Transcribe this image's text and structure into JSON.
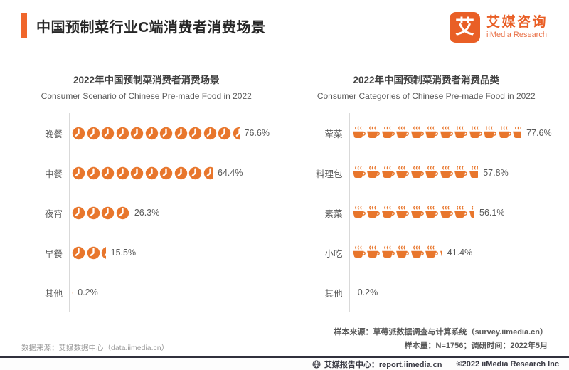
{
  "header": {
    "title": "中国预制菜行业C端消费者消费场景"
  },
  "logo": {
    "glyph": "艾",
    "name_cn": "艾媒咨询",
    "name_en": "iiMedia Research"
  },
  "colors": {
    "accent": "#F0662B",
    "icon_orange": "#E8762C",
    "logo_orange": "#E95F26"
  },
  "chart_data": [
    {
      "type": "bar",
      "variant": "pictogram",
      "icon": "clock",
      "title": "2022年中国预制菜消费者消费场景",
      "subtitle": "Consumer Scenario of Chinese Pre-made Food in 2022",
      "categories": [
        "晚餐",
        "中餐",
        "夜宵",
        "早餐",
        "其他"
      ],
      "values": [
        76.6,
        64.4,
        26.3,
        15.5,
        0.2
      ],
      "labels": [
        "76.6%",
        "64.4%",
        "26.3%",
        "15.5%",
        "0.2%"
      ],
      "icons_per_100pct": 15,
      "xlim": [
        0,
        100
      ],
      "ylabel": "",
      "xlabel": ""
    },
    {
      "type": "bar",
      "variant": "pictogram",
      "icon": "cup",
      "title": "2022年中国预制菜消费者消费品类",
      "subtitle": "Consumer Categories of Chinese Pre-made Food in 2022",
      "categories": [
        "荤菜",
        "料理包",
        "素菜",
        "小吃",
        "其他"
      ],
      "values": [
        77.6,
        57.8,
        56.1,
        41.4,
        0.2
      ],
      "labels": [
        "77.6%",
        "57.8%",
        "56.1%",
        "41.4%",
        "0.2%"
      ],
      "icons_per_100pct": 15,
      "xlim": [
        0,
        100
      ],
      "ylabel": "",
      "xlabel": ""
    }
  ],
  "footnotes": {
    "sample_source": "样本来源：草莓派数据调查与计算系统（survey.iimedia.cn）",
    "sample_size": "样本量：N=1756；调研时间：2022年5月",
    "data_source": "数据来源：艾媒数据中心（data.iimedia.cn）"
  },
  "footer": {
    "report_center": "艾媒报告中心：report.iimedia.cn",
    "copyright": "©2022  iiMedia Research Inc"
  }
}
